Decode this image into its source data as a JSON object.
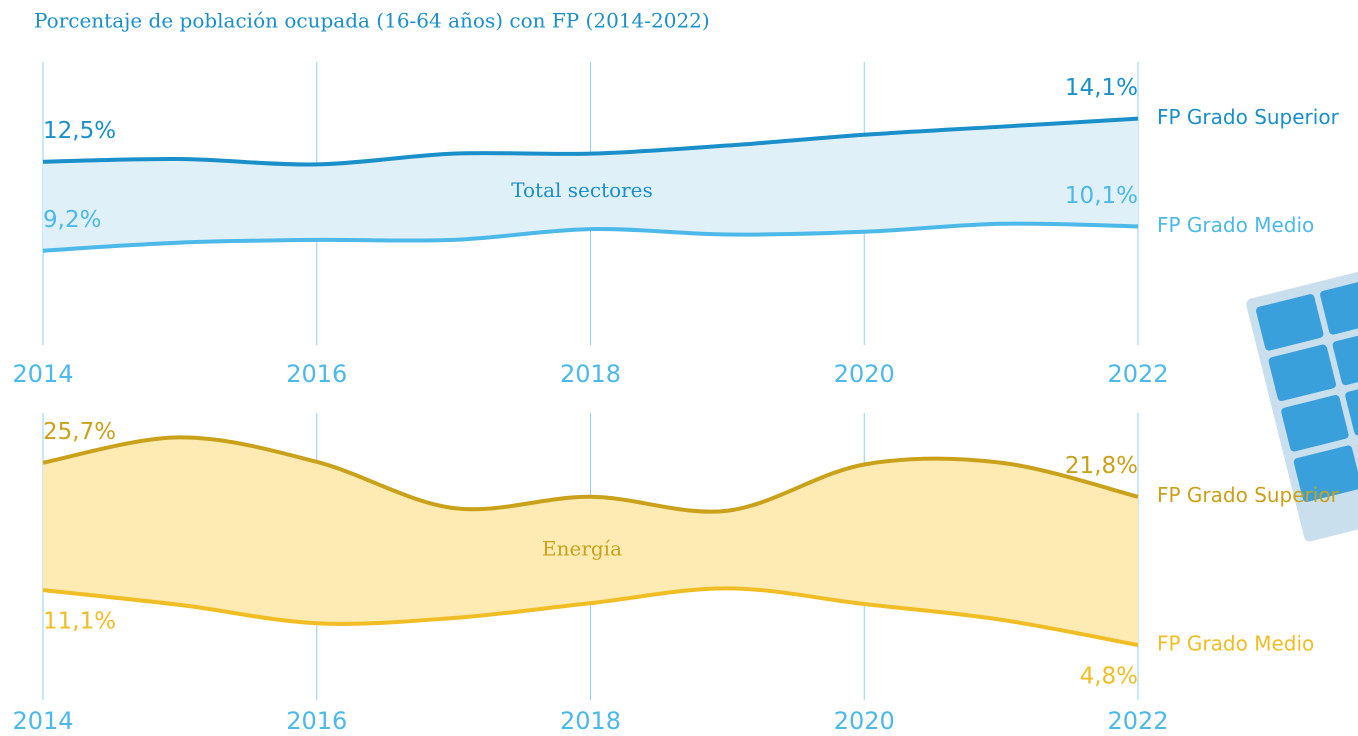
{
  "title": "Porcentaje de población ocupada (16-64 años) con FP (2014-2022)",
  "chart_data": [
    {
      "type": "line",
      "label": "Total sectores",
      "x": [
        2014,
        2015,
        2016,
        2017,
        2018,
        2019,
        2020,
        2021,
        2022
      ],
      "xlim": [
        2014,
        2022
      ],
      "xticks": [
        2014,
        2016,
        2018,
        2020,
        2022
      ],
      "ylim": [
        5.7,
        16.2
      ],
      "grid": true,
      "fill": "#dff0f9",
      "series": [
        {
          "name": "FP Grado Superior",
          "color": "#1a8fc9",
          "values": [
            12.5,
            12.6,
            12.4,
            12.8,
            12.8,
            13.1,
            13.5,
            13.8,
            14.1
          ],
          "value_labels": [
            "12,5%",
            null,
            null,
            null,
            null,
            null,
            null,
            null,
            "14,1%"
          ]
        },
        {
          "name": "FP Grado Medio",
          "color": "#4cb9e9",
          "values": [
            9.2,
            9.5,
            9.6,
            9.6,
            10.0,
            9.8,
            9.9,
            10.2,
            10.1
          ],
          "value_labels": [
            "9,2%",
            null,
            null,
            null,
            null,
            null,
            null,
            null,
            "10,1%"
          ]
        }
      ]
    },
    {
      "type": "line",
      "label": "Energía",
      "x": [
        2014,
        2015,
        2016,
        2017,
        2018,
        2019,
        2020,
        2021,
        2022
      ],
      "xlim": [
        2014,
        2022
      ],
      "xticks": [
        2014,
        2016,
        2018,
        2020,
        2022
      ],
      "ylim": [
        -1.5,
        31.4
      ],
      "grid": true,
      "fill": "#fdebb3",
      "series": [
        {
          "name": "FP Grado Superior",
          "color": "#c9a11a",
          "values": [
            25.7,
            28.6,
            25.8,
            20.5,
            21.8,
            20.2,
            25.5,
            25.7,
            21.8
          ],
          "value_labels": [
            "25,7%",
            null,
            null,
            null,
            null,
            null,
            null,
            null,
            "21,8%"
          ]
        },
        {
          "name": "FP Grado Medio",
          "color": "#f0bd24",
          "values": [
            11.1,
            9.4,
            7.3,
            7.9,
            9.6,
            11.3,
            9.5,
            7.7,
            4.8
          ],
          "value_labels": [
            "11,1%",
            null,
            null,
            null,
            null,
            null,
            null,
            null,
            "4,8%"
          ]
        }
      ]
    }
  ]
}
